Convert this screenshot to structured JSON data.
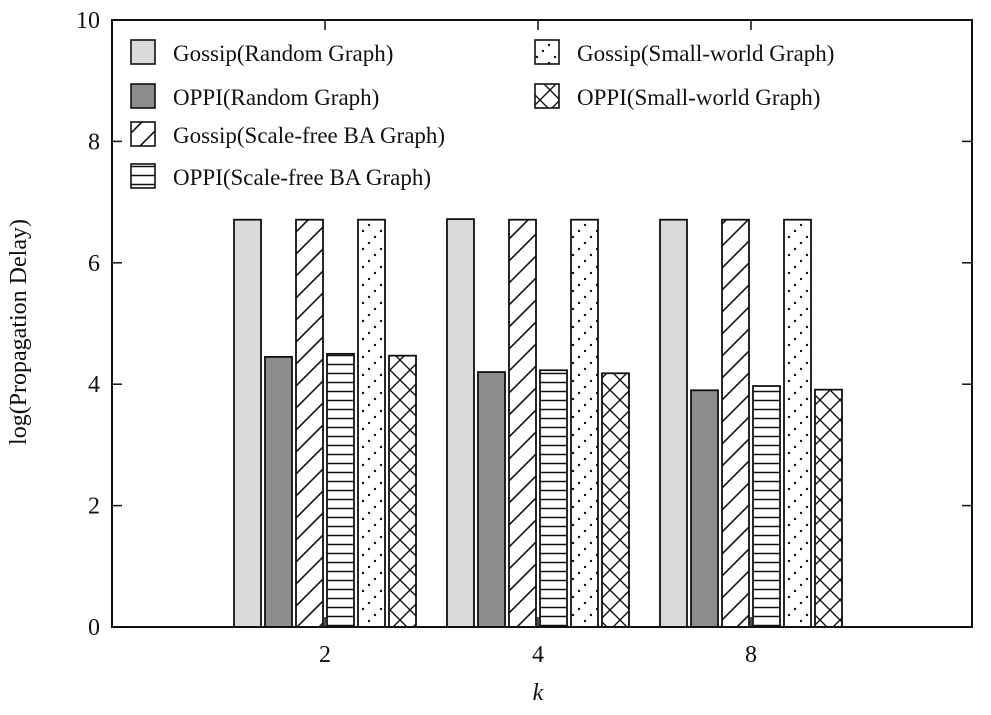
{
  "chart_data": {
    "type": "bar",
    "title": "",
    "xlabel": "k",
    "ylabel": "log(Propagation Delay)",
    "categories": [
      "2",
      "4",
      "8"
    ],
    "ylim": [
      0,
      10
    ],
    "yticks": [
      "0",
      "2",
      "4",
      "6",
      "8",
      "10"
    ],
    "grid": false,
    "legend_position": "top-left",
    "series": [
      {
        "name": "Gossip(Random Graph)",
        "values": [
          6.71,
          6.72,
          6.71
        ],
        "pattern": "solid-light"
      },
      {
        "name": "OPPI(Random Graph)",
        "values": [
          4.45,
          4.2,
          3.9
        ],
        "pattern": "solid-dark"
      },
      {
        "name": "Gossip(Scale-free BA Graph)",
        "values": [
          6.71,
          6.71,
          6.71
        ],
        "pattern": "diagonal"
      },
      {
        "name": "OPPI(Scale-free BA Graph)",
        "values": [
          4.5,
          4.23,
          3.97
        ],
        "pattern": "horizontal"
      },
      {
        "name": "Gossip(Small-world Graph)",
        "values": [
          6.71,
          6.71,
          6.71
        ],
        "pattern": "dots"
      },
      {
        "name": "OPPI(Small-world Graph)",
        "values": [
          4.47,
          4.18,
          3.91
        ],
        "pattern": "crosshatch"
      }
    ]
  },
  "colors": {
    "light_fill": "#d9d9d9",
    "dark_fill": "#8c8c8c",
    "stroke": "#111111"
  }
}
